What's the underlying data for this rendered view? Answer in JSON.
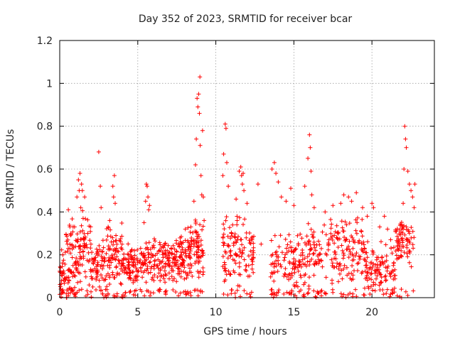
{
  "chart_data": {
    "type": "scatter",
    "title": "Day 352 of 2023, SRMTID for receiver bcar",
    "xlabel": "GPS time / hours",
    "ylabel": "SRMTID / TECUs",
    "xlim": [
      0,
      24
    ],
    "ylim": [
      0,
      1.2
    ],
    "xticks": [
      0,
      5,
      10,
      15,
      20
    ],
    "xtick_labels": [
      "0",
      "5",
      "10",
      "15",
      "20"
    ],
    "yticks": [
      0,
      0.2,
      0.4,
      0.6,
      0.8,
      1,
      1.2
    ],
    "ytick_labels": [
      "0",
      "0.2",
      "0.4",
      "0.6",
      "0.8",
      "1",
      "1.2"
    ],
    "grid": true,
    "marker": "+",
    "series": [
      {
        "name": "SRMTID",
        "color": "#ff0000",
        "density_profile": [
          {
            "t": [
              0.0,
              1.0
            ],
            "median": 0.1,
            "spread": 0.1,
            "n": 70
          },
          {
            "t": [
              0.4,
              0.9
            ],
            "median": 0.28,
            "spread": 0.1,
            "n": 20
          },
          {
            "t": [
              1.0,
              2.0
            ],
            "median": 0.22,
            "spread": 0.15,
            "n": 80
          },
          {
            "t": [
              2.0,
              3.0
            ],
            "median": 0.14,
            "spread": 0.1,
            "n": 70
          },
          {
            "t": [
              3.0,
              4.0
            ],
            "median": 0.2,
            "spread": 0.12,
            "n": 80
          },
          {
            "t": [
              4.0,
              5.5
            ],
            "median": 0.15,
            "spread": 0.08,
            "n": 120
          },
          {
            "t": [
              5.5,
              7.0
            ],
            "median": 0.17,
            "spread": 0.1,
            "n": 110
          },
          {
            "t": [
              7.0,
              8.0
            ],
            "median": 0.18,
            "spread": 0.1,
            "n": 90
          },
          {
            "t": [
              8.0,
              9.2
            ],
            "median": 0.22,
            "spread": 0.12,
            "n": 110
          },
          {
            "t": [
              10.4,
              12.5
            ],
            "median": 0.22,
            "spread": 0.15,
            "n": 130
          },
          {
            "t": [
              13.5,
              16.0
            ],
            "median": 0.17,
            "spread": 0.13,
            "n": 150
          },
          {
            "t": [
              16.0,
              19.5
            ],
            "median": 0.22,
            "spread": 0.13,
            "n": 190
          },
          {
            "t": [
              19.5,
              21.5
            ],
            "median": 0.14,
            "spread": 0.1,
            "n": 120
          },
          {
            "t": [
              21.5,
              22.7
            ],
            "median": 0.26,
            "spread": 0.1,
            "n": 80
          }
        ],
        "points": [
          [
            0.05,
            0.14
          ],
          [
            0.1,
            0.02
          ],
          [
            0.2,
            0.2
          ],
          [
            0.3,
            0.09
          ],
          [
            0.45,
            0.0
          ],
          [
            0.5,
            0.25
          ],
          [
            0.55,
            0.41
          ],
          [
            0.65,
            0.33
          ],
          [
            0.75,
            0.04
          ],
          [
            0.85,
            0.15
          ],
          [
            0.95,
            0.33
          ],
          [
            1.1,
            0.47
          ],
          [
            1.2,
            0.55
          ],
          [
            1.25,
            0.5
          ],
          [
            1.3,
            0.58
          ],
          [
            1.35,
            0.42
          ],
          [
            1.4,
            0.53
          ],
          [
            1.45,
            0.5
          ],
          [
            1.5,
            0.37
          ],
          [
            1.6,
            0.47
          ],
          [
            1.8,
            0.3
          ],
          [
            2.0,
            0.25
          ],
          [
            2.4,
            0.12
          ],
          [
            2.5,
            0.68
          ],
          [
            2.55,
            0.05
          ],
          [
            2.6,
            0.52
          ],
          [
            2.65,
            0.42
          ],
          [
            3.1,
            0.33
          ],
          [
            3.2,
            0.36
          ],
          [
            3.3,
            0.26
          ],
          [
            3.4,
            0.52
          ],
          [
            3.45,
            0.47
          ],
          [
            3.5,
            0.57
          ],
          [
            3.55,
            0.44
          ],
          [
            3.6,
            0.29
          ],
          [
            5.4,
            0.35
          ],
          [
            5.5,
            0.45
          ],
          [
            5.55,
            0.53
          ],
          [
            5.6,
            0.52
          ],
          [
            5.65,
            0.47
          ],
          [
            5.7,
            0.41
          ],
          [
            5.75,
            0.43
          ],
          [
            8.4,
            0.33
          ],
          [
            8.6,
            0.45
          ],
          [
            8.7,
            0.62
          ],
          [
            8.75,
            0.74
          ],
          [
            8.8,
            0.93
          ],
          [
            8.85,
            0.89
          ],
          [
            8.9,
            0.95
          ],
          [
            8.95,
            0.86
          ],
          [
            8.98,
            1.03
          ],
          [
            9.0,
            0.71
          ],
          [
            9.05,
            0.57
          ],
          [
            9.1,
            0.48
          ],
          [
            9.15,
            0.78
          ],
          [
            9.2,
            0.47
          ],
          [
            9.25,
            0.36
          ],
          [
            10.45,
            0.57
          ],
          [
            10.5,
            0.67
          ],
          [
            10.6,
            0.81
          ],
          [
            10.65,
            0.79
          ],
          [
            10.7,
            0.63
          ],
          [
            10.8,
            0.52
          ],
          [
            11.0,
            0.3
          ],
          [
            11.3,
            0.46
          ],
          [
            11.5,
            0.59
          ],
          [
            11.6,
            0.61
          ],
          [
            11.65,
            0.57
          ],
          [
            11.7,
            0.53
          ],
          [
            11.75,
            0.58
          ],
          [
            11.8,
            0.5
          ],
          [
            12.0,
            0.44
          ],
          [
            12.3,
            0.27
          ],
          [
            12.7,
            0.53
          ],
          [
            12.9,
            0.25
          ],
          [
            13.6,
            0.6
          ],
          [
            13.75,
            0.63
          ],
          [
            13.85,
            0.58
          ],
          [
            14.0,
            0.54
          ],
          [
            14.2,
            0.47
          ],
          [
            14.5,
            0.45
          ],
          [
            14.8,
            0.51
          ],
          [
            15.0,
            0.43
          ],
          [
            15.7,
            0.52
          ],
          [
            15.9,
            0.65
          ],
          [
            16.0,
            0.76
          ],
          [
            16.05,
            0.7
          ],
          [
            16.1,
            0.59
          ],
          [
            16.15,
            0.48
          ],
          [
            16.3,
            0.42
          ],
          [
            17.0,
            0.4
          ],
          [
            17.5,
            0.43
          ],
          [
            18.0,
            0.44
          ],
          [
            18.2,
            0.48
          ],
          [
            18.5,
            0.47
          ],
          [
            18.7,
            0.45
          ],
          [
            19.0,
            0.49
          ],
          [
            19.4,
            0.42
          ],
          [
            19.7,
            0.38
          ],
          [
            20.0,
            0.44
          ],
          [
            20.1,
            0.42
          ],
          [
            20.5,
            0.33
          ],
          [
            20.8,
            0.38
          ],
          [
            21.0,
            0.32
          ],
          [
            21.2,
            0.27
          ],
          [
            21.9,
            0.0
          ],
          [
            22.0,
            0.44
          ],
          [
            22.05,
            0.6
          ],
          [
            22.1,
            0.8
          ],
          [
            22.15,
            0.74
          ],
          [
            22.2,
            0.7
          ],
          [
            22.3,
            0.59
          ],
          [
            22.4,
            0.53
          ],
          [
            22.5,
            0.5
          ],
          [
            22.6,
            0.47
          ],
          [
            22.7,
            0.42
          ],
          [
            22.75,
            0.53
          ]
        ]
      }
    ]
  }
}
